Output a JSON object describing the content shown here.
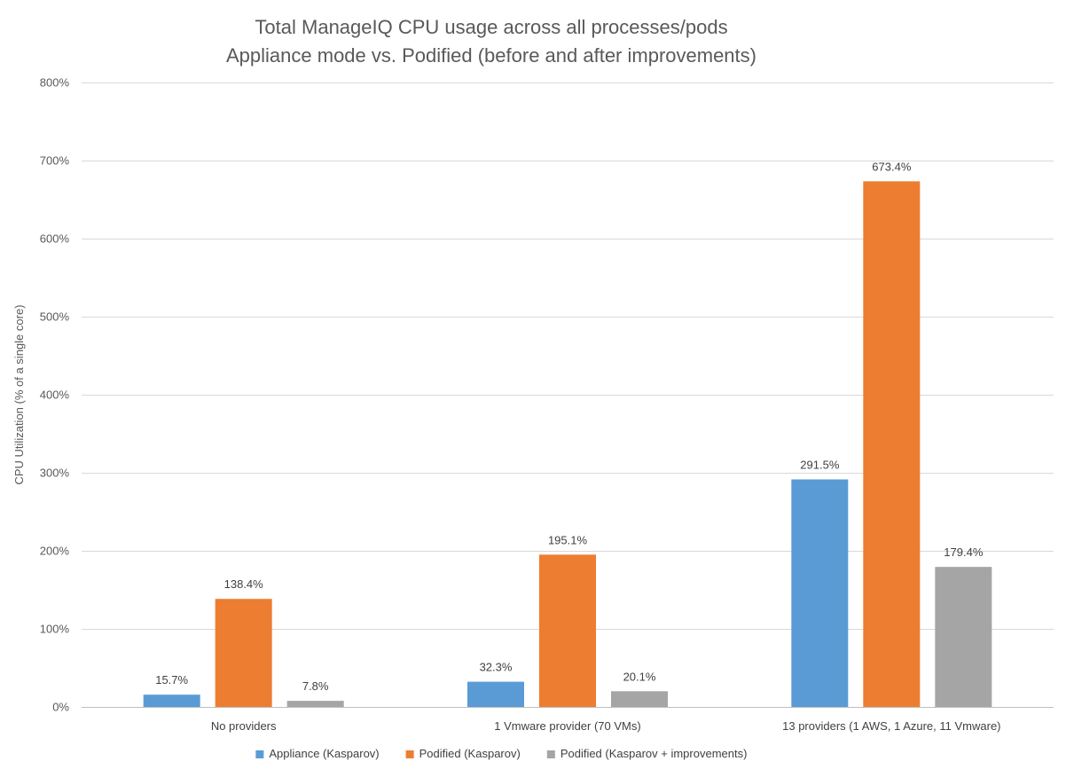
{
  "chart_data": {
    "type": "bar",
    "title": [
      "Total ManageIQ CPU usage across all processes/pods",
      "Appliance mode vs. Podified (before and after improvements)"
    ],
    "xlabel": "",
    "ylabel": "CPU Utilization (% of a single core)",
    "ylim": [
      0,
      800
    ],
    "yticks": [
      0,
      100,
      200,
      300,
      400,
      500,
      600,
      700,
      800
    ],
    "ytick_labels": [
      "0%",
      "100%",
      "200%",
      "300%",
      "400%",
      "500%",
      "600%",
      "700%",
      "800%"
    ],
    "categories": [
      "No providers",
      "1 Vmware provider (70 VMs)",
      "13 providers (1 AWS, 1 Azure, 11 Vmware)"
    ],
    "series": [
      {
        "name": "Appliance (Kasparov)",
        "color": "#5b9bd5",
        "values": [
          15.7,
          32.3,
          291.5
        ],
        "labels": [
          "15.7%",
          "32.3%",
          "291.5%"
        ]
      },
      {
        "name": "Podified (Kasparov)",
        "color": "#ed7d31",
        "values": [
          138.4,
          195.1,
          673.4
        ],
        "labels": [
          "138.4%",
          "195.1%",
          "673.4%"
        ]
      },
      {
        "name": "Podified (Kasparov + improvements)",
        "color": "#a5a5a5",
        "values": [
          7.8,
          20.1,
          179.4
        ],
        "labels": [
          "7.8%",
          "20.1%",
          "179.4%"
        ]
      }
    ],
    "grid": true,
    "legend": "bottom"
  }
}
